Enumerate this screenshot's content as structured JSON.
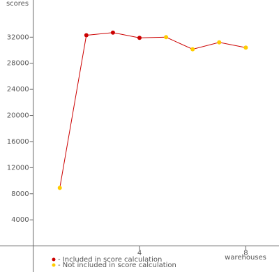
{
  "chart_data": {
    "type": "line",
    "y_label": "scores",
    "x_label": "warehouses",
    "x": [
      1,
      2,
      3,
      4,
      5,
      6,
      7,
      8
    ],
    "values": [
      8900,
      32300,
      32700,
      31900,
      32000,
      30150,
      31200,
      30400
    ],
    "line_color": "#cc0000",
    "point_colors": [
      "#ffcc00",
      "#cc0000",
      "#cc0000",
      "#cc0000",
      "#ffcc00",
      "#ffcc00",
      "#ffcc00",
      "#ffcc00"
    ],
    "legend": [
      {
        "name": "- Included in score calculation",
        "color": "#cc0000"
      },
      {
        "name": "- Not included in score calculation",
        "color": "#ffcc00"
      }
    ],
    "xlim": [
      -1.25,
      9.25
    ],
    "ylim": [
      -4000,
      37700
    ],
    "xticks": [
      4,
      8
    ],
    "yticks": [
      4000,
      8000,
      12000,
      16000,
      20000,
      24000,
      28000,
      32000
    ]
  }
}
